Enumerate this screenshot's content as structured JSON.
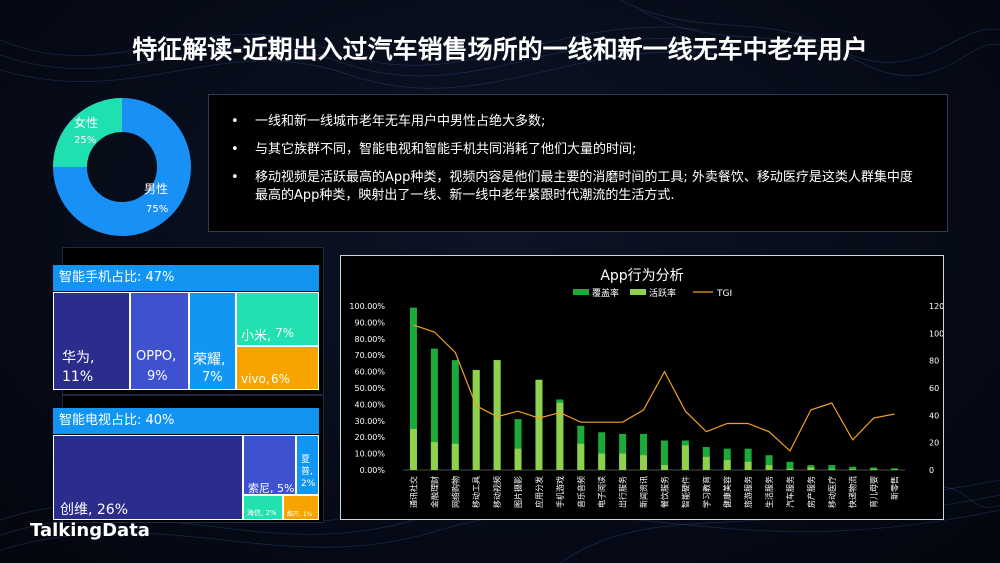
{
  "title": "特征解读-近期出入过汽车销售场所的一线和新一线无车中老年用户",
  "gender": {
    "female_label": "女性",
    "female_pct": "25%",
    "female_value": 25,
    "male_label": "男性",
    "male_pct": "75%",
    "male_value": 75,
    "female_color": "#1fe0b0",
    "male_color": "#1890f5"
  },
  "notes": [
    "一线和新一线城市老年无车用户中男性占绝大多数;",
    "与其它族群不同，智能电视和智能手机共同消耗了他们大量的时间;",
    "移动视频是活跃最高的App种类，视频内容是他们最主要的消磨时间的工具; 外卖餐饮、移动医疗是这类人群集中度最高的App种类，映射出了一线、新一线中老年紧跟时代潮流的生活方式."
  ],
  "phone": {
    "header": "智能手机占比: 47%",
    "brands": [
      {
        "name": "华为,",
        "pct": "11%",
        "color": "#2b2d8c"
      },
      {
        "name": "OPPO,",
        "pct": "9%",
        "color": "#3e52cf"
      },
      {
        "name": "荣耀,",
        "pct": "7%",
        "color": "#1296f4"
      },
      {
        "name": "小米,",
        "pct": "7%",
        "color": "#22e1b0"
      },
      {
        "name": "vivo,",
        "pct": "6%",
        "color": "#f8a300"
      }
    ]
  },
  "tv": {
    "header": "智能电视占比: 40%",
    "brands": [
      {
        "label": "创维, 26%",
        "color": "#2b2d8c"
      },
      {
        "label": "索尼, 5%",
        "color": "#3e52cf"
      },
      {
        "label": "夏普, 2%",
        "color": "#1296f4"
      },
      {
        "label": "海信, 2%",
        "color": "#22e1b0"
      },
      {
        "label": "酷开, 1%",
        "color": "#f8a300"
      }
    ]
  },
  "chart_data": {
    "type": "bar",
    "title": "App行为分析",
    "legend": [
      "覆盖率",
      "活跃率",
      "TGI"
    ],
    "colors": {
      "coverage": "#1cab3a",
      "active": "#8fd04c",
      "tgi": "#f0a020"
    },
    "categories": [
      "通讯社交",
      "金融理财",
      "网络购物",
      "移动工具",
      "移动视频",
      "图片摄影",
      "应用分发",
      "手机游戏",
      "音乐音频",
      "电子阅读",
      "出行服务",
      "新闻资讯",
      "餐饮服务",
      "智能硬件",
      "学习教育",
      "健康美容",
      "旅游服务",
      "生活服务",
      "汽车服务",
      "房产服务",
      "移动医疗",
      "快递物流",
      "育儿母婴",
      "新零售"
    ],
    "series": [
      {
        "name": "覆盖率",
        "values": [
          99,
          74,
          67,
          61,
          67,
          31,
          55,
          43,
          27,
          23,
          22,
          22,
          18,
          18,
          14,
          13,
          13,
          9,
          5,
          3,
          3,
          2,
          1.5,
          1
        ]
      },
      {
        "name": "活跃率",
        "values": [
          25,
          17,
          16,
          61,
          67,
          13,
          55,
          41,
          16,
          10,
          10,
          9,
          3,
          15,
          8,
          6,
          5,
          3,
          0.8,
          1.5,
          0.5,
          0.5,
          0.5,
          0.3
        ]
      },
      {
        "name": "TGI",
        "axis": "right",
        "values": [
          106,
          101,
          86,
          47,
          39,
          43,
          38,
          42,
          35,
          35,
          35,
          44,
          72,
          43,
          28,
          34,
          34,
          28,
          14,
          44,
          49,
          22,
          38,
          41
        ]
      }
    ],
    "yleft_ticks": [
      "0.00%",
      "10.00%",
      "20.00%",
      "30.00%",
      "40.00%",
      "50.00%",
      "60.00%",
      "70.00%",
      "80.00%",
      "90.00%",
      "100.00%"
    ],
    "yright_ticks": [
      "0",
      "20",
      "40",
      "60",
      "80",
      "100",
      "120"
    ],
    "ylim_left": [
      0,
      100
    ],
    "ylim_right": [
      0,
      120
    ]
  },
  "logo": "TalkingData"
}
